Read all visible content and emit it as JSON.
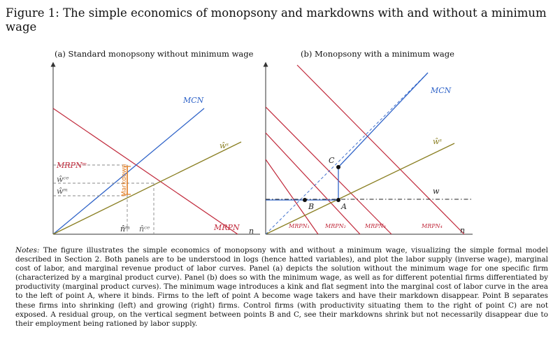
{
  "caption": {
    "title": "Figure 1: The simple economics of monopsony and markdowns with and without a minimum wage"
  },
  "panel_a": {
    "title": "(a) Standard monopsony without minimum wage",
    "labels": {
      "mcn": "MCN",
      "ws": "ŵˢ",
      "mrpn_m": "MRPNᵐ",
      "mrpn": "MRPN",
      "wce": "ŵᶜᵉ",
      "wm": "ŵᵐ",
      "markdown": "Markdown",
      "nm": "n̂ᵐ",
      "nce": "n̂ᶜᵉ",
      "n": "n"
    }
  },
  "panel_b": {
    "title": "(b) Monopsony with a minimum wage",
    "labels": {
      "mcn": "MCN",
      "ws": "ŵˢ",
      "w": "w",
      "C": "C",
      "B": "B",
      "A": "A",
      "mrpn1": "MRPN₁",
      "mrpn2": "MRPN₂",
      "mrpn3": "MRPN₃",
      "mrpn4": "MRPN₄",
      "n": "n"
    }
  },
  "notes": {
    "label": "Notes:",
    "text": " The figure illustrates the simple economics of monopsony with and without a minimum wage, visualizing the simple formal model described in Section 2. Both panels are to be understood in logs (hence hatted variables), and plot the labor supply (inverse wage), marginal cost of labor, and marginal revenue product of labor curves. Panel (a) depicts the solution without the minimum wage for one specific firm (characterized by a marginal product curve). Panel (b) does so with the minimum wage, as well as for different potential firms differentiated by productivity (marginal product curves). The minimum wage introduces a kink and flat segment into the marginal cost of labor curve in the area to the left of point A, where it binds. Firms to the left of point A become wage takers and have their markdown disappear. Point B separates these firms into shrinking (left) and growing (right) firms. Control firms (with productivity situating them to the right of point C) are not exposed. A residual group, on the vertical segment between points B and C, see their markdowns shrink but not necessarily disappear due to their employment being rationed by labor supply."
  },
  "colors": {
    "mrpn": "#c0283a",
    "mcn": "#2f63c8",
    "supply": "#8a7f22",
    "markdown": "#e07a1f"
  }
}
